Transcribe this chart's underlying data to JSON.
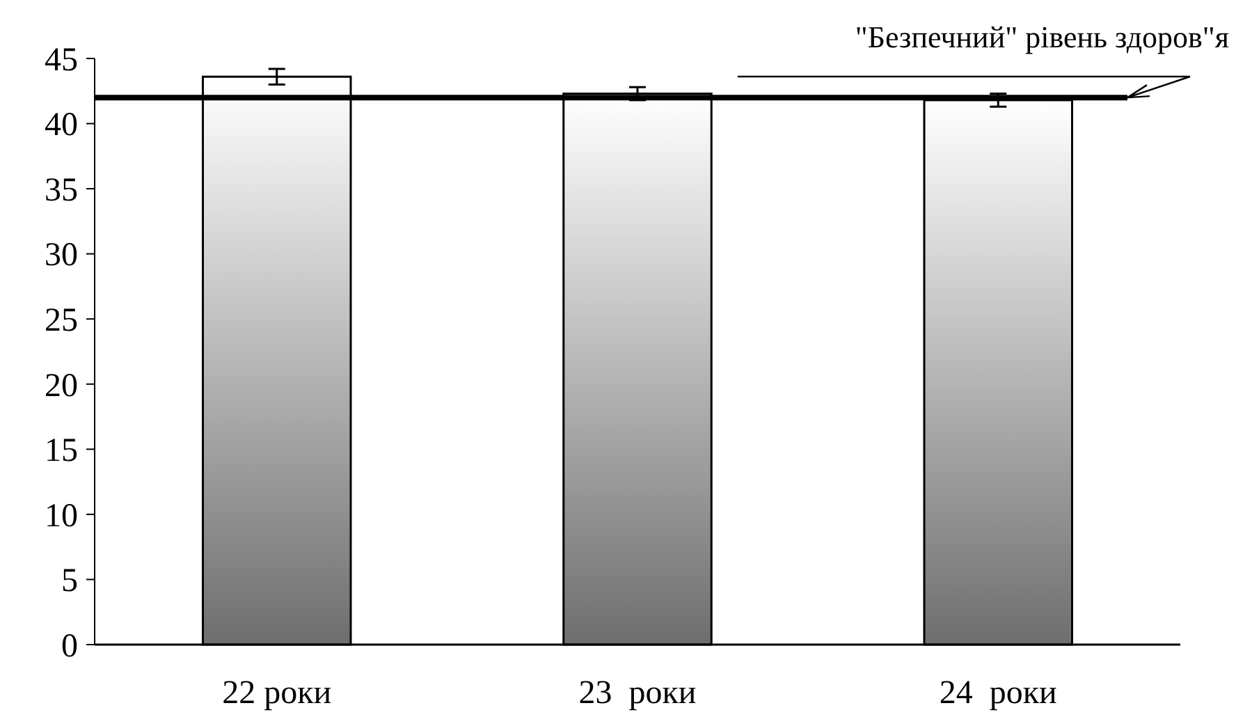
{
  "chart_data": {
    "type": "bar",
    "categories": [
      "22 роки",
      "23  роки",
      "24  роки"
    ],
    "values": [
      43.6,
      42.3,
      41.8
    ],
    "errors": [
      0.6,
      0.5,
      0.5
    ],
    "color": "#6e6e6e",
    "ylim": [
      0,
      45
    ],
    "yticks": [
      0,
      5,
      10,
      15,
      20,
      25,
      30,
      35,
      40,
      45
    ],
    "ref_lines": [
      {
        "axis": "y",
        "value": 42,
        "label": "\"Безпечний\" рівень здоров\"я",
        "color": "#000000"
      }
    ]
  }
}
